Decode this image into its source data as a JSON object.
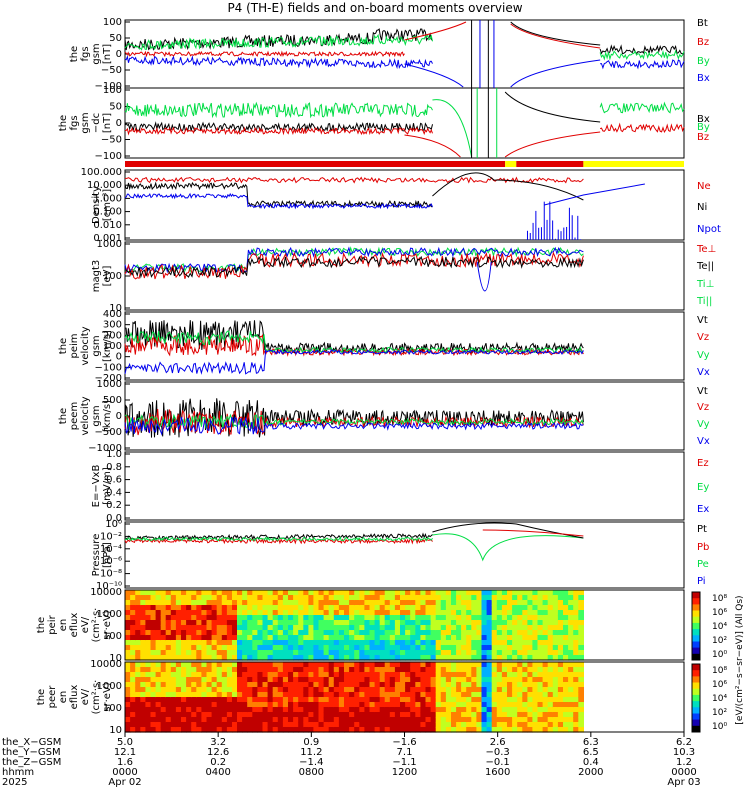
{
  "title": "P4 (TH-E) fields and on-board moments overview",
  "colors": {
    "black": "#000000",
    "red": "#e00000",
    "green": "#00dd44",
    "blue": "#0000ee",
    "yellow": "#ffff00"
  },
  "panels": [
    {
      "id": "fgs-gsm",
      "ylabel": [
        "the",
        "fgs",
        "gsm",
        "[nT]"
      ],
      "yticks": [
        "100",
        "50",
        "0",
        "−50",
        "−100"
      ],
      "ylim": [
        -100,
        100
      ],
      "legend": [
        {
          "text": "Bt",
          "color": "black"
        },
        {
          "text": "Bz",
          "color": "red"
        },
        {
          "text": "By",
          "color": "green"
        },
        {
          "text": "Bx",
          "color": "blue"
        }
      ]
    },
    {
      "id": "fgs-gsm-dc",
      "ylabel": [
        "the",
        "fgs",
        "gsm",
        "−dc",
        "[nT]"
      ],
      "yticks": [
        "100",
        "50",
        "0",
        "−50",
        "−100"
      ],
      "ylim": [
        -120,
        110
      ],
      "legend": [
        {
          "text": "Bx",
          "color": "black"
        },
        {
          "text": "By",
          "color": "green"
        },
        {
          "text": "Bz",
          "color": "red"
        }
      ]
    },
    {
      "id": "density",
      "ylabel": [
        "Density",
        "[cm⁻³]"
      ],
      "yticks": [
        "100.000",
        "10.000",
        "1.000",
        "0.100",
        "0.010",
        "0.001"
      ],
      "scale": "log",
      "legend": [
        {
          "text": "Ne",
          "color": "red"
        },
        {
          "text": "Ni",
          "color": "black"
        },
        {
          "text": "Npot",
          "color": "blue"
        }
      ]
    },
    {
      "id": "temperature",
      "ylabel": [
        "magt3",
        "[eV]"
      ],
      "yticks": [
        "1000",
        "100",
        "10"
      ],
      "scale": "log",
      "legend": [
        {
          "text": "Te⊥",
          "color": "red"
        },
        {
          "text": "Te||",
          "color": "black"
        },
        {
          "text": "Ti⊥",
          "color": "green"
        },
        {
          "text": "Ti||",
          "color": "green"
        }
      ]
    },
    {
      "id": "peim-velocity",
      "ylabel": [
        "the",
        "peim",
        "velocity",
        "gsm",
        "[km/s]"
      ],
      "yticks": [
        "400",
        "300",
        "200",
        "100",
        "0",
        "−100",
        "−200"
      ],
      "ylim": [
        -250,
        400
      ],
      "legend": [
        {
          "text": "Vt",
          "color": "black"
        },
        {
          "text": "Vz",
          "color": "red"
        },
        {
          "text": "Vy",
          "color": "green"
        },
        {
          "text": "Vx",
          "color": "blue"
        }
      ]
    },
    {
      "id": "peem-velocity",
      "ylabel": [
        "the",
        "peem",
        "velocity",
        "gsm",
        "[km/s]"
      ],
      "yticks": [
        "1000",
        "500",
        "0",
        "−500",
        "−1000"
      ],
      "ylim": [
        -1000,
        1300
      ],
      "legend": [
        {
          "text": "Vt",
          "color": "black"
        },
        {
          "text": "Vz",
          "color": "red"
        },
        {
          "text": "Vy",
          "color": "green"
        },
        {
          "text": "Vx",
          "color": "blue"
        }
      ]
    },
    {
      "id": "efield",
      "ylabel": [
        "E=−VxB",
        "[mV/m]"
      ],
      "yticks": [
        "1.0",
        "0.8",
        "0.6",
        "0.4",
        "0.2",
        "0.0"
      ],
      "ylim": [
        0,
        1
      ],
      "legend": [
        {
          "text": "Ez",
          "color": "red"
        },
        {
          "text": "Ey",
          "color": "green"
        },
        {
          "text": "Ex",
          "color": "blue"
        }
      ]
    },
    {
      "id": "pressure",
      "ylabel": [
        "Pressure",
        "[nPa]"
      ],
      "yticks": [
        "10⁰",
        "10⁻²",
        "10⁻⁴",
        "10⁻⁶",
        "10⁻⁸",
        "10⁻¹⁰"
      ],
      "scale": "log",
      "legend": [
        {
          "text": "Pt",
          "color": "black"
        },
        {
          "text": "Pb",
          "color": "red"
        },
        {
          "text": "Pe",
          "color": "green"
        },
        {
          "text": "Pi",
          "color": "blue"
        }
      ]
    },
    {
      "id": "peir-spec",
      "ylabel": [
        "the",
        "peir",
        "en",
        "eflux",
        "eV/",
        "(cm²·s·",
        "sr·eV)"
      ],
      "yticks": [
        "10000",
        "1000",
        "100",
        "10"
      ],
      "scale": "log"
    },
    {
      "id": "peer-spec",
      "ylabel": [
        "the",
        "peer",
        "en",
        "eflux",
        "eV/",
        "(cm²·s·",
        "sr·eV)"
      ],
      "yticks": [
        "10000",
        "1000",
        "100",
        "10"
      ],
      "scale": "log"
    }
  ],
  "colorbar": {
    "ticks": [
      "10⁸",
      "10⁶",
      "10⁴",
      "10²",
      "10⁰"
    ],
    "label": "[eV/(cm²−s−sr−eV)]",
    "label2": "[eV/(cm²−s−sr−eV)] (All Qs)"
  },
  "xaxis": {
    "row_labels": [
      "the_X−GSM",
      "the_Y−GSM",
      "the_Z−GSM",
      "hhmm",
      "2025"
    ],
    "columns": [
      {
        "x": "5.0",
        "y": "12.1",
        "z": "1.6",
        "hhmm": "0000",
        "date": "Apr 02"
      },
      {
        "x": "3.2",
        "y": "12.6",
        "z": "0.2",
        "hhmm": "0400",
        "date": ""
      },
      {
        "x": "0.9",
        "y": "11.2",
        "z": "−1.4",
        "hhmm": "0800",
        "date": ""
      },
      {
        "x": "−1.6",
        "y": "7.1",
        "z": "−1.1",
        "hhmm": "1200",
        "date": ""
      },
      {
        "x": "2.6",
        "y": "−0.3",
        "z": "−0.1",
        "hhmm": "1600",
        "date": ""
      },
      {
        "x": "6.3",
        "y": "6.5",
        "z": "0.4",
        "hhmm": "2000",
        "date": ""
      },
      {
        "x": "6.2",
        "y": "10.3",
        "z": "1.2",
        "hhmm": "0000",
        "date": "Apr 03"
      }
    ]
  },
  "chart_data": {
    "type": "line",
    "title": "P4 (TH-E) fields and on-board moments overview",
    "x_range": [
      "2025-04-02 00:00",
      "2025-04-03 00:00"
    ],
    "x_ticks": [
      "0000",
      "0400",
      "0800",
      "1200",
      "1600",
      "2000",
      "0000"
    ],
    "panels": [
      "the fgs gsm [nT]",
      "the fgs gsm −dc [nT]",
      "Density [cm⁻³]",
      "magt3 [eV]",
      "the peim velocity gsm [km/s]",
      "the peem velocity gsm [km/s]",
      "E=−VxB [mV/m]",
      "Pressure [nPa]",
      "the peir en eflux",
      "the peer en eflux"
    ]
  }
}
